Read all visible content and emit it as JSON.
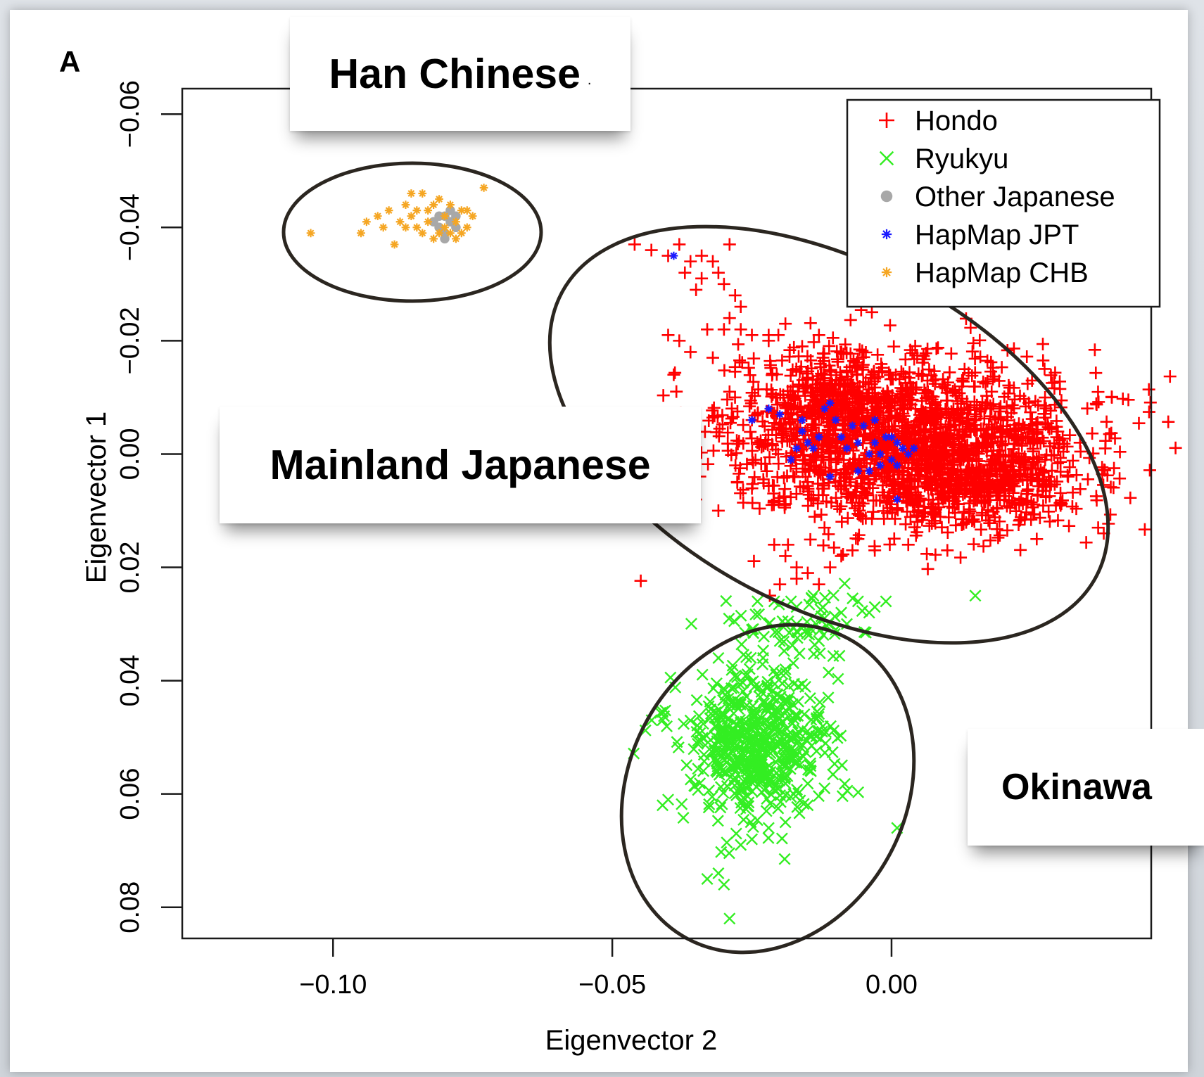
{
  "panel_label": "A",
  "callouts": {
    "han": "Han Chinese",
    "han_suffix": ".",
    "mainland": "Mainland Japanese",
    "okinawa": "Okinawa"
  },
  "colors": {
    "hondo": "#ff0000",
    "ryukyu": "#33ee22",
    "other_japanese": "#a8a8a8",
    "hapmap_jpt": "#1a1aff",
    "hapmap_chb": "#f5a623",
    "ellipse": "#2b2620"
  },
  "chart_data": {
    "type": "scatter",
    "title": "",
    "xlabel": "Eigenvector 2",
    "ylabel": "Eigenvector 1",
    "xlim": [
      -0.127,
      0.0465
    ],
    "ylim": [
      0.0855,
      -0.0645
    ],
    "y_reversed": true,
    "x_ticks": [
      -0.1,
      -0.05,
      0.0
    ],
    "x_tick_labels": [
      "−0.10",
      "−0.05",
      "0.00"
    ],
    "y_ticks": [
      -0.06,
      -0.04,
      -0.02,
      0.0,
      0.02,
      0.04,
      0.06,
      0.08
    ],
    "y_tick_labels": [
      "−0.06",
      "−0.04",
      "−0.02",
      "0.00",
      "0.02",
      "0.04",
      "0.06",
      "0.08"
    ],
    "grid": false,
    "legend": {
      "position": "top-right"
    },
    "series": [
      {
        "name": "Hondo",
        "marker": "plus",
        "color": "#ff0000",
        "points": [
          [
            -0.046,
            -0.037
          ],
          [
            -0.043,
            -0.036
          ],
          [
            -0.04,
            -0.035
          ],
          [
            -0.038,
            -0.037
          ],
          [
            -0.036,
            -0.034
          ],
          [
            -0.034,
            -0.035
          ],
          [
            -0.032,
            -0.034
          ],
          [
            -0.029,
            -0.037
          ],
          [
            -0.037,
            -0.032
          ],
          [
            -0.034,
            -0.031
          ],
          [
            -0.031,
            -0.032
          ],
          [
            -0.035,
            -0.029
          ],
          [
            -0.03,
            -0.03
          ],
          [
            -0.028,
            -0.028
          ],
          [
            -0.027,
            -0.026
          ],
          [
            -0.029,
            -0.024
          ],
          [
            -0.027,
            -0.022
          ],
          [
            -0.03,
            -0.022
          ],
          [
            -0.025,
            -0.021
          ],
          [
            -0.022,
            -0.021
          ],
          [
            -0.033,
            -0.022
          ],
          [
            -0.038,
            -0.02
          ],
          [
            -0.04,
            -0.021
          ],
          [
            -0.036,
            -0.018
          ],
          [
            -0.032,
            -0.017
          ],
          [
            -0.039,
            -0.014
          ],
          [
            -0.029,
            -0.011
          ],
          [
            -0.031,
            0.01
          ],
          [
            -0.013,
            -0.021
          ],
          [
            -0.019,
            -0.023
          ],
          [
            -0.016,
            -0.019
          ],
          [
            -0.022,
            -0.02
          ],
          [
            -0.021,
            0.016
          ],
          [
            -0.019,
            0.018
          ],
          [
            -0.017,
            0.02
          ],
          [
            -0.015,
            0.021
          ],
          [
            -0.011,
            0.02
          ],
          [
            -0.009,
            0.018
          ],
          [
            -0.007,
            0.017
          ],
          [
            -0.003,
            0.017
          ],
          [
            0.003,
            0.016
          ],
          [
            0.01,
            0.017
          ],
          [
            0.026,
            0.015
          ],
          [
            0.037,
            0.013
          ],
          [
            0.038,
            0.014
          ],
          [
            -0.012,
            0.013
          ],
          [
            -0.006,
            0.015
          ],
          [
            -0.017,
            0.022
          ],
          [
            -0.02,
            0.023
          ],
          [
            -0.013,
            0.023
          ]
        ],
        "clusters": [
          {
            "center": [
              0.003,
              -0.002
            ],
            "spread": [
              0.0155,
              0.0072
            ],
            "count": 1500,
            "seed": 11
          },
          {
            "center": [
              -0.01,
              -0.01
            ],
            "spread": [
              0.007,
              0.005
            ],
            "count": 300,
            "seed": 12
          },
          {
            "center": [
              0.015,
              0.005
            ],
            "spread": [
              0.009,
              0.004
            ],
            "count": 400,
            "seed": 13
          }
        ]
      },
      {
        "name": "Ryukyu",
        "marker": "x",
        "color": "#33ee22",
        "points": [
          [
            -0.041,
            0.062
          ],
          [
            -0.04,
            0.061
          ],
          [
            -0.03,
            0.076
          ],
          [
            -0.029,
            0.082
          ],
          [
            -0.031,
            0.074
          ],
          [
            -0.033,
            0.075
          ],
          [
            0.001,
            0.066
          ],
          [
            0.015,
            0.025
          ],
          [
            -0.024,
            0.026
          ],
          [
            -0.021,
            0.026
          ],
          [
            -0.018,
            0.026
          ],
          [
            -0.014,
            0.025
          ],
          [
            -0.012,
            0.029
          ],
          [
            -0.009,
            0.028
          ],
          [
            -0.006,
            0.026
          ],
          [
            -0.003,
            0.027
          ],
          [
            -0.001,
            0.026
          ],
          [
            -0.004,
            0.028
          ],
          [
            -0.017,
            0.03
          ],
          [
            -0.022,
            0.03
          ],
          [
            -0.025,
            0.031
          ],
          [
            -0.02,
            0.033
          ],
          [
            -0.013,
            0.033
          ],
          [
            -0.031,
            0.036
          ],
          [
            -0.023,
            0.036
          ],
          [
            -0.019,
            0.038
          ],
          [
            -0.01,
            0.031
          ],
          [
            -0.017,
            0.027
          ],
          [
            -0.008,
            0.03
          ],
          [
            -0.027,
            0.069
          ],
          [
            -0.025,
            0.068
          ],
          [
            -0.022,
            0.066
          ],
          [
            -0.019,
            0.065
          ],
          [
            -0.015,
            0.062
          ],
          [
            -0.012,
            0.059
          ]
        ],
        "clusters": [
          {
            "center": [
              -0.024,
              0.051
            ],
            "spread": [
              0.0065,
              0.0062
            ],
            "count": 560,
            "seed": 21
          },
          {
            "center": [
              -0.018,
              0.031
            ],
            "spread": [
              0.006,
              0.003
            ],
            "count": 60,
            "seed": 22
          }
        ]
      },
      {
        "name": "Other Japanese",
        "marker": "dot",
        "color": "#a8a8a8",
        "points": [
          [
            -0.08,
            -0.042
          ],
          [
            -0.079,
            -0.041
          ],
          [
            -0.081,
            -0.04
          ],
          [
            -0.08,
            -0.039
          ],
          [
            -0.078,
            -0.04
          ],
          [
            -0.082,
            -0.041
          ],
          [
            -0.079,
            -0.043
          ],
          [
            -0.081,
            -0.042
          ],
          [
            -0.08,
            -0.038
          ],
          [
            -0.078,
            -0.042
          ]
        ]
      },
      {
        "name": "HapMap JPT",
        "marker": "star",
        "color": "#1a1aff",
        "points": [
          [
            -0.039,
            -0.035
          ],
          [
            -0.025,
            -0.006
          ],
          [
            -0.022,
            -0.008
          ],
          [
            -0.02,
            -0.007
          ],
          [
            -0.016,
            -0.004
          ],
          [
            -0.014,
            -0.001
          ],
          [
            -0.012,
            -0.008
          ],
          [
            -0.01,
            -0.006
          ],
          [
            -0.009,
            -0.003
          ],
          [
            -0.008,
            -0.001
          ],
          [
            -0.006,
            -0.002
          ],
          [
            -0.005,
            -0.005
          ],
          [
            -0.004,
            0.0
          ],
          [
            -0.003,
            -0.002
          ],
          [
            -0.002,
            0.0
          ],
          [
            -0.001,
            -0.003
          ],
          [
            0.0,
            0.001
          ],
          [
            0.001,
            -0.002
          ],
          [
            0.002,
            -0.001
          ],
          [
            0.003,
            0.0
          ],
          [
            0.004,
            -0.001
          ],
          [
            -0.011,
            -0.009
          ],
          [
            -0.013,
            -0.003
          ],
          [
            -0.017,
            -0.001
          ],
          [
            -0.018,
            0.001
          ],
          [
            -0.015,
            -0.002
          ],
          [
            -0.007,
            -0.005
          ],
          [
            -0.004,
            0.003
          ],
          [
            -0.002,
            0.002
          ],
          [
            0.001,
            0.008
          ],
          [
            -0.003,
            -0.006
          ],
          [
            -0.016,
            -0.006
          ],
          [
            -0.011,
            0.004
          ],
          [
            -0.006,
            0.003
          ],
          [
            0.0,
            -0.003
          ],
          [
            0.001,
            0.002
          ]
        ]
      },
      {
        "name": "HapMap CHB",
        "marker": "star",
        "color": "#f5a623",
        "points": [
          [
            -0.104,
            -0.039
          ],
          [
            -0.095,
            -0.039
          ],
          [
            -0.094,
            -0.041
          ],
          [
            -0.092,
            -0.042
          ],
          [
            -0.09,
            -0.043
          ],
          [
            -0.088,
            -0.041
          ],
          [
            -0.087,
            -0.044
          ],
          [
            -0.086,
            -0.042
          ],
          [
            -0.085,
            -0.04
          ],
          [
            -0.084,
            -0.046
          ],
          [
            -0.083,
            -0.043
          ],
          [
            -0.082,
            -0.038
          ],
          [
            -0.081,
            -0.045
          ],
          [
            -0.08,
            -0.042
          ],
          [
            -0.079,
            -0.044
          ],
          [
            -0.078,
            -0.041
          ],
          [
            -0.077,
            -0.043
          ],
          [
            -0.076,
            -0.04
          ],
          [
            -0.075,
            -0.042
          ],
          [
            -0.073,
            -0.047
          ],
          [
            -0.089,
            -0.037
          ],
          [
            -0.091,
            -0.04
          ],
          [
            -0.086,
            -0.046
          ],
          [
            -0.083,
            -0.041
          ],
          [
            -0.082,
            -0.044
          ],
          [
            -0.08,
            -0.04
          ],
          [
            -0.078,
            -0.038
          ],
          [
            -0.076,
            -0.043
          ],
          [
            -0.084,
            -0.039
          ],
          [
            -0.087,
            -0.04
          ],
          [
            -0.081,
            -0.039
          ],
          [
            -0.079,
            -0.039
          ],
          [
            -0.077,
            -0.039
          ],
          [
            -0.085,
            -0.043
          ]
        ]
      }
    ]
  }
}
